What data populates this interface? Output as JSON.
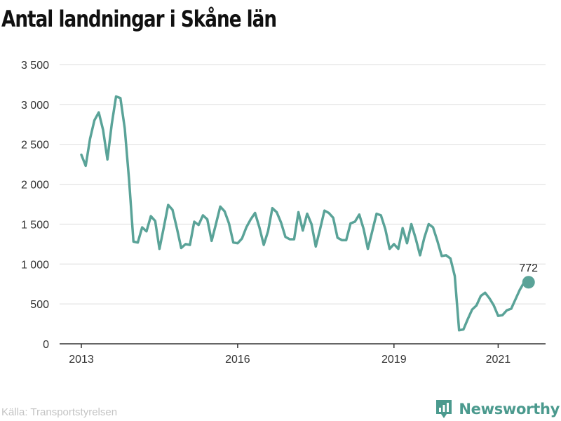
{
  "title": "Antal landningar i Skåne län",
  "source": "Källa: Transportstyrelsen",
  "brand": {
    "name": "Newsworthy",
    "logo_icon": "newsworthy-bar-chart-icon"
  },
  "colors": {
    "line": "#5aa398",
    "grid": "#dddddd",
    "axis": "#333333",
    "brand": "#4b9a8e",
    "source_text": "#c4c4c4"
  },
  "chart_data": {
    "type": "line",
    "title": "Antal landningar i Skåne län",
    "xlabel": "",
    "ylabel": "",
    "ylim": [
      0,
      3500
    ],
    "yticks": [
      0,
      500,
      1000,
      1500,
      2000,
      2500,
      3000,
      3500
    ],
    "ytick_labels": [
      "0",
      "500",
      "1 000",
      "1 500",
      "2 000",
      "2 500",
      "3 000",
      "3 500"
    ],
    "xticks": [
      {
        "label": "2013",
        "date": "2013-01"
      },
      {
        "label": "2016",
        "date": "2016-01"
      },
      {
        "label": "2019",
        "date": "2019-01"
      },
      {
        "label": "2021",
        "date": "2021-01"
      }
    ],
    "grid": "horizontal",
    "x_start": "2013-01",
    "x_end": "2021-08",
    "series": [
      {
        "values": [
          2370,
          2230,
          2570,
          2800,
          2900,
          2680,
          2310,
          2750,
          3100,
          3080,
          2700,
          2050,
          1280,
          1270,
          1460,
          1410,
          1600,
          1540,
          1190,
          1460,
          1740,
          1680,
          1450,
          1200,
          1250,
          1240,
          1530,
          1490,
          1610,
          1560,
          1290,
          1500,
          1720,
          1660,
          1510,
          1270,
          1260,
          1320,
          1460,
          1560,
          1640,
          1460,
          1240,
          1410,
          1700,
          1650,
          1520,
          1340,
          1310,
          1310,
          1650,
          1420,
          1630,
          1500,
          1220,
          1440,
          1670,
          1640,
          1580,
          1330,
          1300,
          1300,
          1510,
          1530,
          1620,
          1440,
          1190,
          1410,
          1630,
          1610,
          1440,
          1190,
          1250,
          1190,
          1450,
          1260,
          1500,
          1320,
          1110,
          1330,
          1500,
          1460,
          1290,
          1100,
          1110,
          1070,
          850,
          170,
          180,
          310,
          430,
          480,
          600,
          640,
          570,
          480,
          350,
          360,
          420,
          440,
          560,
          680,
          772
        ]
      }
    ],
    "annotations": [
      {
        "date": "2021-08",
        "value": 772,
        "label": "772"
      }
    ]
  }
}
